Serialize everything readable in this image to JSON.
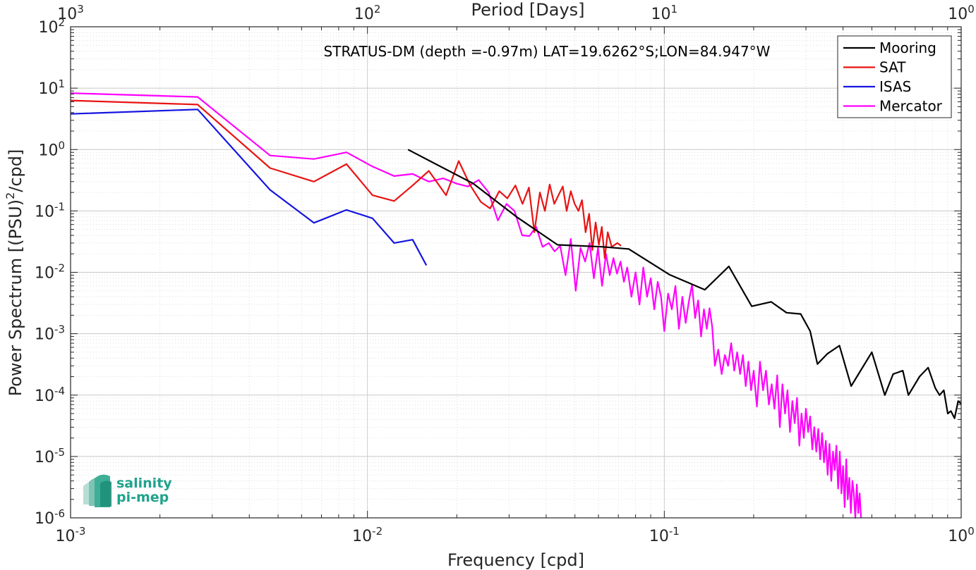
{
  "chart_data": {
    "type": "line",
    "title": "",
    "annotation": "STRATUS-DM (depth =-0.97m) LAT=19.6262°S;LON=84.947°W",
    "xlabel": "Frequency [cpd]",
    "ylabel_main": "Power Spectrum [(PSU)",
    "ylabel_sup": "2",
    "ylabel_tail": "/cpd]",
    "x2label": "Period [Days]",
    "xscale": "log",
    "yscale": "log",
    "xlim": [
      0.001,
      1
    ],
    "ylim": [
      1e-06,
      100
    ],
    "grid": true,
    "legend_position": "top-right",
    "x_ticks": [
      {
        "value": 0.001,
        "base": "10",
        "exp": "-3"
      },
      {
        "value": 0.01,
        "base": "10",
        "exp": "-2"
      },
      {
        "value": 0.1,
        "base": "10",
        "exp": "-1"
      },
      {
        "value": 1,
        "base": "10",
        "exp": "0"
      }
    ],
    "x2_ticks": [
      {
        "value": 0.001,
        "base": "10",
        "exp": "3"
      },
      {
        "value": 0.01,
        "base": "10",
        "exp": "2"
      },
      {
        "value": 0.1,
        "base": "10",
        "exp": "1"
      },
      {
        "value": 1,
        "base": "10",
        "exp": "0"
      }
    ],
    "y_ticks": [
      {
        "value": 100,
        "base": "10",
        "exp": "2"
      },
      {
        "value": 10,
        "base": "10",
        "exp": "1"
      },
      {
        "value": 1,
        "base": "10",
        "exp": "0"
      },
      {
        "value": 0.1,
        "base": "10",
        "exp": "-1"
      },
      {
        "value": 0.01,
        "base": "10",
        "exp": "-2"
      },
      {
        "value": 0.001,
        "base": "10",
        "exp": "-3"
      },
      {
        "value": 0.0001,
        "base": "10",
        "exp": "-4"
      },
      {
        "value": 1e-05,
        "base": "10",
        "exp": "-5"
      },
      {
        "value": 1e-06,
        "base": "10",
        "exp": "-6"
      }
    ],
    "series": [
      {
        "name": "Mooring",
        "color": "#000000",
        "points": [
          [
            0.0137,
            1.0
          ],
          [
            0.0227,
            0.28
          ],
          [
            0.0318,
            0.08
          ],
          [
            0.0437,
            0.028
          ],
          [
            0.062,
            0.026
          ],
          [
            0.0759,
            0.024
          ],
          [
            0.104,
            0.0092
          ],
          [
            0.137,
            0.0052
          ],
          [
            0.165,
            0.0125
          ],
          [
            0.197,
            0.0028
          ],
          [
            0.229,
            0.0033
          ],
          [
            0.258,
            0.0022
          ],
          [
            0.288,
            0.0021
          ],
          [
            0.31,
            0.0011
          ],
          [
            0.328,
            0.00032
          ],
          [
            0.354,
            0.00047
          ],
          [
            0.389,
            0.00064
          ],
          [
            0.426,
            0.00014
          ],
          [
            0.5,
            0.0005
          ],
          [
            0.553,
            0.0001
          ],
          [
            0.59,
            0.00022
          ],
          [
            0.636,
            0.00025
          ],
          [
            0.664,
            0.0001
          ],
          [
            0.724,
            0.0002
          ],
          [
            0.774,
            0.00028
          ],
          [
            0.818,
            0.00013
          ],
          [
            0.846,
            0.0001
          ],
          [
            0.874,
            0.00012
          ],
          [
            0.901,
            5e-05
          ],
          [
            0.923,
            5.5e-05
          ],
          [
            0.95,
            4.2e-05
          ],
          [
            0.977,
            8e-05
          ],
          [
            1.0,
            7.2e-05
          ]
        ]
      },
      {
        "name": "SAT",
        "color": "#e81414",
        "points": [
          [
            0.001,
            6.3
          ],
          [
            0.00268,
            5.4
          ],
          [
            0.0047,
            0.5
          ],
          [
            0.0066,
            0.3
          ],
          [
            0.0085,
            0.58
          ],
          [
            0.0104,
            0.18
          ],
          [
            0.0123,
            0.145
          ],
          [
            0.0142,
            0.26
          ],
          [
            0.0161,
            0.45
          ],
          [
            0.0184,
            0.18
          ],
          [
            0.0203,
            0.65
          ],
          [
            0.0222,
            0.26
          ],
          [
            0.0241,
            0.14
          ],
          [
            0.0259,
            0.11
          ],
          [
            0.0278,
            0.21
          ],
          [
            0.0296,
            0.16
          ],
          [
            0.0315,
            0.26
          ],
          [
            0.0333,
            0.13
          ],
          [
            0.035,
            0.24
          ],
          [
            0.0365,
            0.045
          ],
          [
            0.0381,
            0.2
          ],
          [
            0.0396,
            0.1
          ],
          [
            0.0411,
            0.27
          ],
          [
            0.0426,
            0.13
          ],
          [
            0.044,
            0.18
          ],
          [
            0.0455,
            0.25
          ],
          [
            0.0469,
            0.1
          ],
          [
            0.0484,
            0.21
          ],
          [
            0.0499,
            0.13
          ],
          [
            0.0514,
            0.1
          ],
          [
            0.0528,
            0.15
          ],
          [
            0.0543,
            0.045
          ],
          [
            0.0558,
            0.09
          ],
          [
            0.0572,
            0.023
          ],
          [
            0.0587,
            0.065
          ],
          [
            0.0602,
            0.028
          ],
          [
            0.0616,
            0.055
          ],
          [
            0.063,
            0.017
          ],
          [
            0.0645,
            0.045
          ],
          [
            0.0665,
            0.026
          ],
          [
            0.0695,
            0.03
          ],
          [
            0.0715,
            0.027
          ]
        ]
      },
      {
        "name": "ISAS",
        "color": "#1414e0",
        "points": [
          [
            0.001,
            3.8
          ],
          [
            0.00268,
            4.5
          ],
          [
            0.0047,
            0.22
          ],
          [
            0.0066,
            0.064
          ],
          [
            0.0085,
            0.104
          ],
          [
            0.0104,
            0.076
          ],
          [
            0.0123,
            0.03
          ],
          [
            0.0142,
            0.034
          ],
          [
            0.0158,
            0.013
          ]
        ]
      },
      {
        "name": "Mercator",
        "color": "#ff00ff",
        "points": [
          [
            0.001,
            8.3
          ],
          [
            0.00268,
            7.2
          ],
          [
            0.0047,
            0.8
          ],
          [
            0.0066,
            0.7
          ],
          [
            0.0085,
            0.9
          ],
          [
            0.0104,
            0.53
          ],
          [
            0.0123,
            0.37
          ],
          [
            0.0142,
            0.4
          ],
          [
            0.0161,
            0.3
          ],
          [
            0.018,
            0.34
          ],
          [
            0.0199,
            0.28
          ],
          [
            0.0218,
            0.25
          ],
          [
            0.0237,
            0.32
          ],
          [
            0.0256,
            0.2
          ],
          [
            0.0275,
            0.07
          ],
          [
            0.0294,
            0.13
          ],
          [
            0.0313,
            0.1
          ],
          [
            0.0332,
            0.04
          ],
          [
            0.0351,
            0.039
          ],
          [
            0.037,
            0.055
          ],
          [
            0.0389,
            0.026
          ],
          [
            0.0408,
            0.03
          ],
          [
            0.0427,
            0.022
          ],
          [
            0.0446,
            0.027
          ],
          [
            0.0465,
            0.009
          ],
          [
            0.0484,
            0.035
          ],
          [
            0.0503,
            0.005
          ],
          [
            0.0522,
            0.025
          ],
          [
            0.0541,
            0.015
          ],
          [
            0.056,
            0.03
          ],
          [
            0.0579,
            0.008
          ],
          [
            0.0598,
            0.025
          ],
          [
            0.0617,
            0.006
          ],
          [
            0.0636,
            0.02
          ],
          [
            0.0655,
            0.009
          ],
          [
            0.0674,
            0.017
          ],
          [
            0.0693,
            0.0095
          ],
          [
            0.0712,
            0.015
          ],
          [
            0.0731,
            0.007
          ],
          [
            0.075,
            0.012
          ],
          [
            0.0775,
            0.004
          ],
          [
            0.08,
            0.01
          ],
          [
            0.0825,
            0.003
          ],
          [
            0.085,
            0.012
          ],
          [
            0.0875,
            0.004
          ],
          [
            0.09,
            0.008
          ],
          [
            0.0925,
            0.0025
          ],
          [
            0.095,
            0.007
          ],
          [
            0.0975,
            0.004
          ],
          [
            0.1,
            0.0011
          ],
          [
            0.103,
            0.0045
          ],
          [
            0.106,
            0.0025
          ],
          [
            0.109,
            0.006
          ],
          [
            0.112,
            0.0012
          ],
          [
            0.115,
            0.004
          ],
          [
            0.118,
            0.0015
          ],
          [
            0.121,
            0.0034
          ],
          [
            0.124,
            0.0063
          ],
          [
            0.127,
            0.0018
          ],
          [
            0.13,
            0.0035
          ],
          [
            0.133,
            0.0009
          ],
          [
            0.136,
            0.0025
          ],
          [
            0.139,
            0.0012
          ],
          [
            0.142,
            0.0026
          ],
          [
            0.145,
            0.0013
          ],
          [
            0.148,
            0.0003
          ],
          [
            0.152,
            0.00055
          ],
          [
            0.156,
            0.00022
          ],
          [
            0.16,
            0.00045
          ],
          [
            0.164,
            0.0003
          ],
          [
            0.168,
            0.0007
          ],
          [
            0.172,
            0.00025
          ],
          [
            0.176,
            0.0005
          ],
          [
            0.18,
            0.00022
          ],
          [
            0.184,
            0.00045
          ],
          [
            0.188,
            0.00014
          ],
          [
            0.192,
            0.00035
          ],
          [
            0.196,
            0.00012
          ],
          [
            0.2,
            0.00025
          ],
          [
            0.205,
            6.5e-05
          ],
          [
            0.21,
            0.00035
          ],
          [
            0.215,
            0.00012
          ],
          [
            0.22,
            0.00025
          ],
          [
            0.225,
            7e-05
          ],
          [
            0.23,
            0.00015
          ],
          [
            0.235,
            6e-05
          ],
          [
            0.24,
            0.00021
          ],
          [
            0.245,
            3e-05
          ],
          [
            0.25,
            0.00015
          ],
          [
            0.255,
            5e-05
          ],
          [
            0.26,
            0.00012
          ],
          [
            0.265,
            2.5e-05
          ],
          [
            0.27,
            8e-05
          ],
          [
            0.275,
            3.5e-05
          ],
          [
            0.28,
            9e-05
          ],
          [
            0.285,
            1.5e-05
          ],
          [
            0.29,
            5e-05
          ],
          [
            0.295,
            2e-05
          ],
          [
            0.3,
            6e-05
          ],
          [
            0.305,
            2.5e-05
          ],
          [
            0.31,
            4.5e-05
          ],
          [
            0.315,
            1.3e-05
          ],
          [
            0.32,
            3e-05
          ],
          [
            0.325,
            1.2e-05
          ],
          [
            0.33,
            2.8e-05
          ],
          [
            0.335,
            9e-06
          ],
          [
            0.34,
            2.4e-05
          ],
          [
            0.345,
            8e-06
          ],
          [
            0.35,
            1.8e-05
          ],
          [
            0.355,
            5e-06
          ],
          [
            0.36,
            1.6e-05
          ],
          [
            0.365,
            4e-06
          ],
          [
            0.37,
            1.2e-05
          ],
          [
            0.375,
            6e-06
          ],
          [
            0.38,
            1.5e-05
          ],
          [
            0.385,
            3e-06
          ],
          [
            0.39,
            1.2e-05
          ],
          [
            0.395,
            2.5e-06
          ],
          [
            0.4,
            7e-06
          ],
          [
            0.405,
            1.5e-06
          ],
          [
            0.41,
            9e-06
          ],
          [
            0.415,
            2e-06
          ],
          [
            0.42,
            4.5e-06
          ],
          [
            0.425,
            1.2e-06
          ],
          [
            0.43,
            4e-06
          ],
          [
            0.435,
            2.5e-06
          ],
          [
            0.44,
            1e-06
          ],
          [
            0.445,
            3.5e-06
          ],
          [
            0.45,
            1.2e-06
          ],
          [
            0.455,
            2.5e-06
          ],
          [
            0.46,
            1e-06
          ]
        ]
      }
    ]
  },
  "logo": {
    "line1": "salinity",
    "line2": "pi-mep",
    "color": "#1fa38c"
  }
}
